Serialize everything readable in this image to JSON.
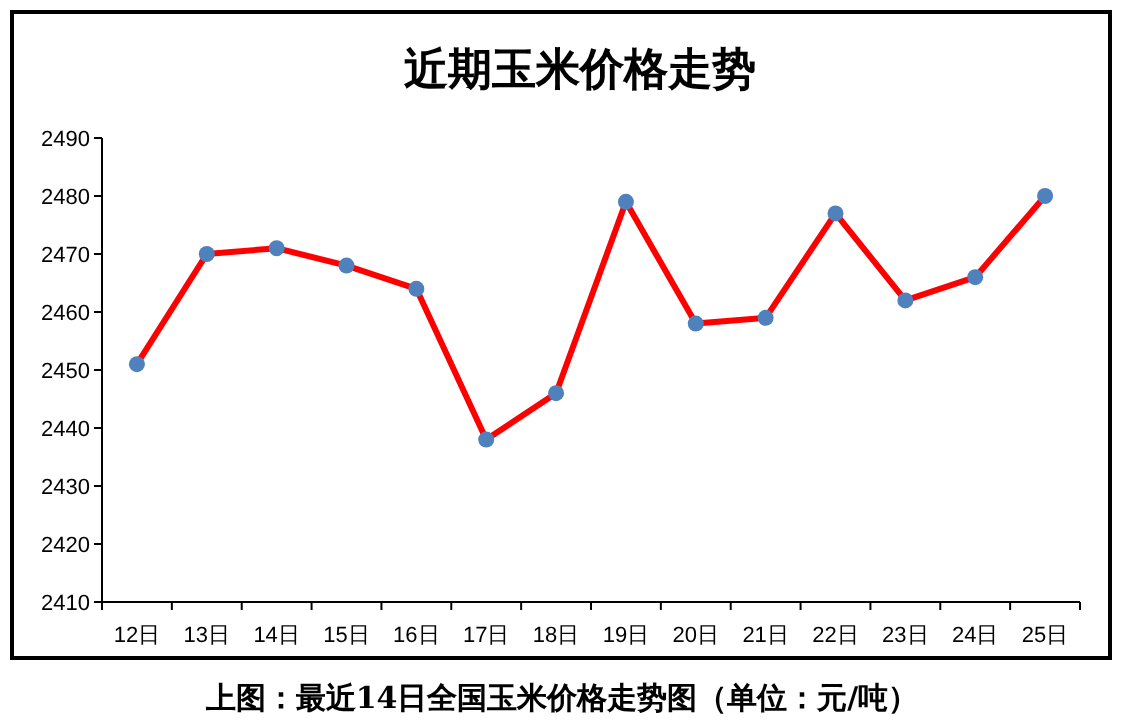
{
  "chart_data": {
    "type": "line",
    "title": "近期玉米价格走势",
    "annotations": [
      "上图：最近14日全国玉米价格走势图（单位：元/吨）"
    ],
    "categories": [
      "12日",
      "13日",
      "14日",
      "15日",
      "16日",
      "17日",
      "18日",
      "19日",
      "20日",
      "21日",
      "22日",
      "23日",
      "24日",
      "25日"
    ],
    "series": [
      {
        "color": "#ff0000",
        "values": [
          2451,
          2470,
          2471,
          2468,
          2464,
          2438,
          2446,
          2479,
          2458,
          2459,
          2477,
          2462,
          2466,
          2480
        ]
      }
    ],
    "ylim": [
      2410,
      2490
    ],
    "yticks": [
      2410,
      2420,
      2430,
      2440,
      2450,
      2460,
      2470,
      2480,
      2490
    ],
    "grid": false,
    "marker": "circle",
    "line_style": "solid"
  }
}
